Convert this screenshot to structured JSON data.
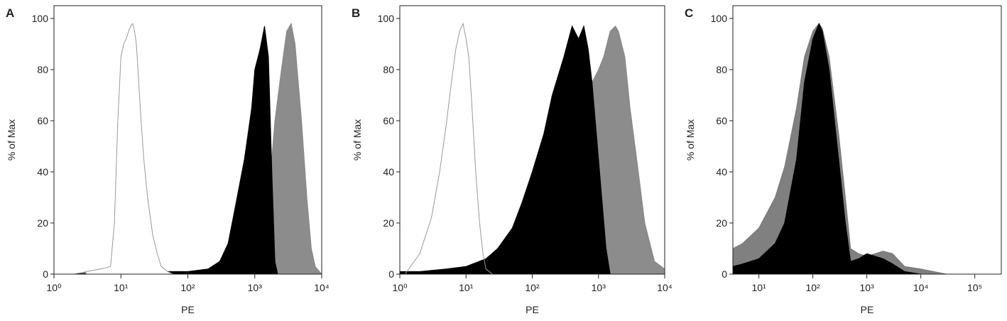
{
  "chart_data": [
    {
      "type": "area",
      "panel": "A",
      "ylabel": "% of Max",
      "xlabel": "PE",
      "log_x": true,
      "xlim": [
        1,
        10000
      ],
      "ylim": [
        0,
        105
      ],
      "xticks": [
        {
          "value": 1,
          "label": "10⁰"
        },
        {
          "value": 10,
          "label": "10¹"
        },
        {
          "value": 100,
          "label": "10²"
        },
        {
          "value": 1000,
          "label": "10³"
        },
        {
          "value": 10000,
          "label": "10⁴"
        }
      ],
      "yticks": [
        0,
        20,
        40,
        60,
        80,
        100
      ],
      "series": [
        {
          "color": "#888888",
          "fill": "#8c8c8c",
          "x": [
            2,
            5,
            10,
            20,
            50,
            100,
            200,
            500,
            1000,
            1500,
            2000,
            2500,
            3000,
            3500,
            4000,
            5000,
            6000,
            7000,
            8000,
            10000
          ],
          "values": [
            0,
            2,
            3,
            3,
            1,
            1,
            1,
            2,
            5,
            20,
            60,
            80,
            95,
            98,
            90,
            60,
            30,
            10,
            3,
            0
          ]
        },
        {
          "color": "#000000",
          "fill": "#000000",
          "x": [
            2,
            10,
            20,
            50,
            100,
            200,
            300,
            400,
            500,
            700,
            900,
            1000,
            1200,
            1400,
            1600,
            1800,
            2000,
            2200
          ],
          "values": [
            0,
            1,
            2,
            1,
            1,
            2,
            5,
            12,
            25,
            45,
            65,
            80,
            88,
            97,
            85,
            40,
            5,
            0
          ]
        },
        {
          "color": "#999999",
          "fill": "#ffffff",
          "x": [
            3,
            5,
            7,
            8,
            9,
            10,
            11,
            12,
            13,
            14,
            15,
            16,
            17,
            18,
            20,
            22,
            25,
            30,
            35,
            40,
            50,
            60
          ],
          "values": [
            1,
            2,
            3,
            20,
            60,
            85,
            90,
            92,
            95,
            97,
            98,
            95,
            90,
            80,
            60,
            45,
            30,
            15,
            8,
            3,
            1,
            0
          ]
        }
      ]
    },
    {
      "type": "area",
      "panel": "B",
      "ylabel": "% of Max",
      "xlabel": "PE",
      "log_x": true,
      "xlim": [
        1,
        10000
      ],
      "ylim": [
        0,
        105
      ],
      "xticks": [
        {
          "value": 1,
          "label": "10⁰"
        },
        {
          "value": 10,
          "label": "10¹"
        },
        {
          "value": 100,
          "label": "10²"
        },
        {
          "value": 1000,
          "label": "10³"
        },
        {
          "value": 10000,
          "label": "10⁴"
        }
      ],
      "yticks": [
        0,
        20,
        40,
        60,
        80,
        100
      ],
      "series": [
        {
          "color": "#888888",
          "fill": "#8c8c8c",
          "x": [
            200,
            500,
            800,
            1000,
            1200,
            1500,
            1800,
            2000,
            2500,
            3000,
            4000,
            5000,
            7000,
            10000
          ],
          "values": [
            0,
            40,
            75,
            80,
            85,
            95,
            97,
            95,
            85,
            65,
            40,
            20,
            5,
            2
          ]
        },
        {
          "color": "#000000",
          "fill": "#000000",
          "x": [
            1,
            2,
            5,
            10,
            20,
            30,
            50,
            70,
            100,
            150,
            200,
            300,
            400,
            500,
            600,
            700,
            800,
            1000,
            1300,
            1500
          ],
          "values": [
            1,
            1,
            2,
            3,
            6,
            10,
            18,
            28,
            40,
            55,
            70,
            85,
            97,
            92,
            97,
            88,
            75,
            45,
            10,
            0
          ]
        },
        {
          "color": "#999999",
          "fill": "none",
          "x": [
            1.2,
            2,
            3,
            4,
            5,
            6,
            7,
            8,
            9,
            10,
            11,
            12,
            14,
            16,
            18,
            20,
            25
          ],
          "values": [
            0,
            8,
            22,
            40,
            58,
            75,
            88,
            95,
            98,
            92,
            85,
            70,
            40,
            20,
            8,
            2,
            0
          ]
        }
      ]
    },
    {
      "type": "area",
      "panel": "C",
      "ylabel": "% of Max",
      "xlabel": "PE",
      "log_x": true,
      "xlim": [
        3.3,
        310000
      ],
      "ylim": [
        0,
        105
      ],
      "xticks": [
        {
          "value": 10,
          "label": "10¹"
        },
        {
          "value": 100,
          "label": "10²"
        },
        {
          "value": 1000,
          "label": "10³"
        },
        {
          "value": 10000,
          "label": "10⁴"
        },
        {
          "value": 100000,
          "label": "10⁵"
        }
      ],
      "yticks": [
        0,
        20,
        40,
        60,
        80,
        100
      ],
      "series": [
        {
          "color": "#777777",
          "fill": "#808080",
          "x": [
            3.3,
            5,
            10,
            20,
            30,
            50,
            70,
            100,
            130,
            150,
            200,
            300,
            400,
            500,
            700,
            1000,
            2000,
            3000,
            5000,
            10000,
            30000
          ],
          "values": [
            10,
            12,
            18,
            30,
            42,
            65,
            85,
            95,
            98,
            96,
            85,
            55,
            30,
            10,
            8,
            7,
            9,
            8,
            3,
            2,
            0
          ]
        },
        {
          "color": "#000000",
          "fill": "#000000",
          "x": [
            3.3,
            5,
            10,
            20,
            30,
            50,
            70,
            100,
            130,
            150,
            200,
            300,
            400,
            500,
            700,
            1000,
            2000,
            3000,
            5000,
            10000
          ],
          "values": [
            3,
            4,
            6,
            12,
            20,
            45,
            75,
            92,
            98,
            95,
            80,
            45,
            20,
            5,
            6,
            8,
            6,
            4,
            1,
            0
          ]
        }
      ]
    }
  ]
}
